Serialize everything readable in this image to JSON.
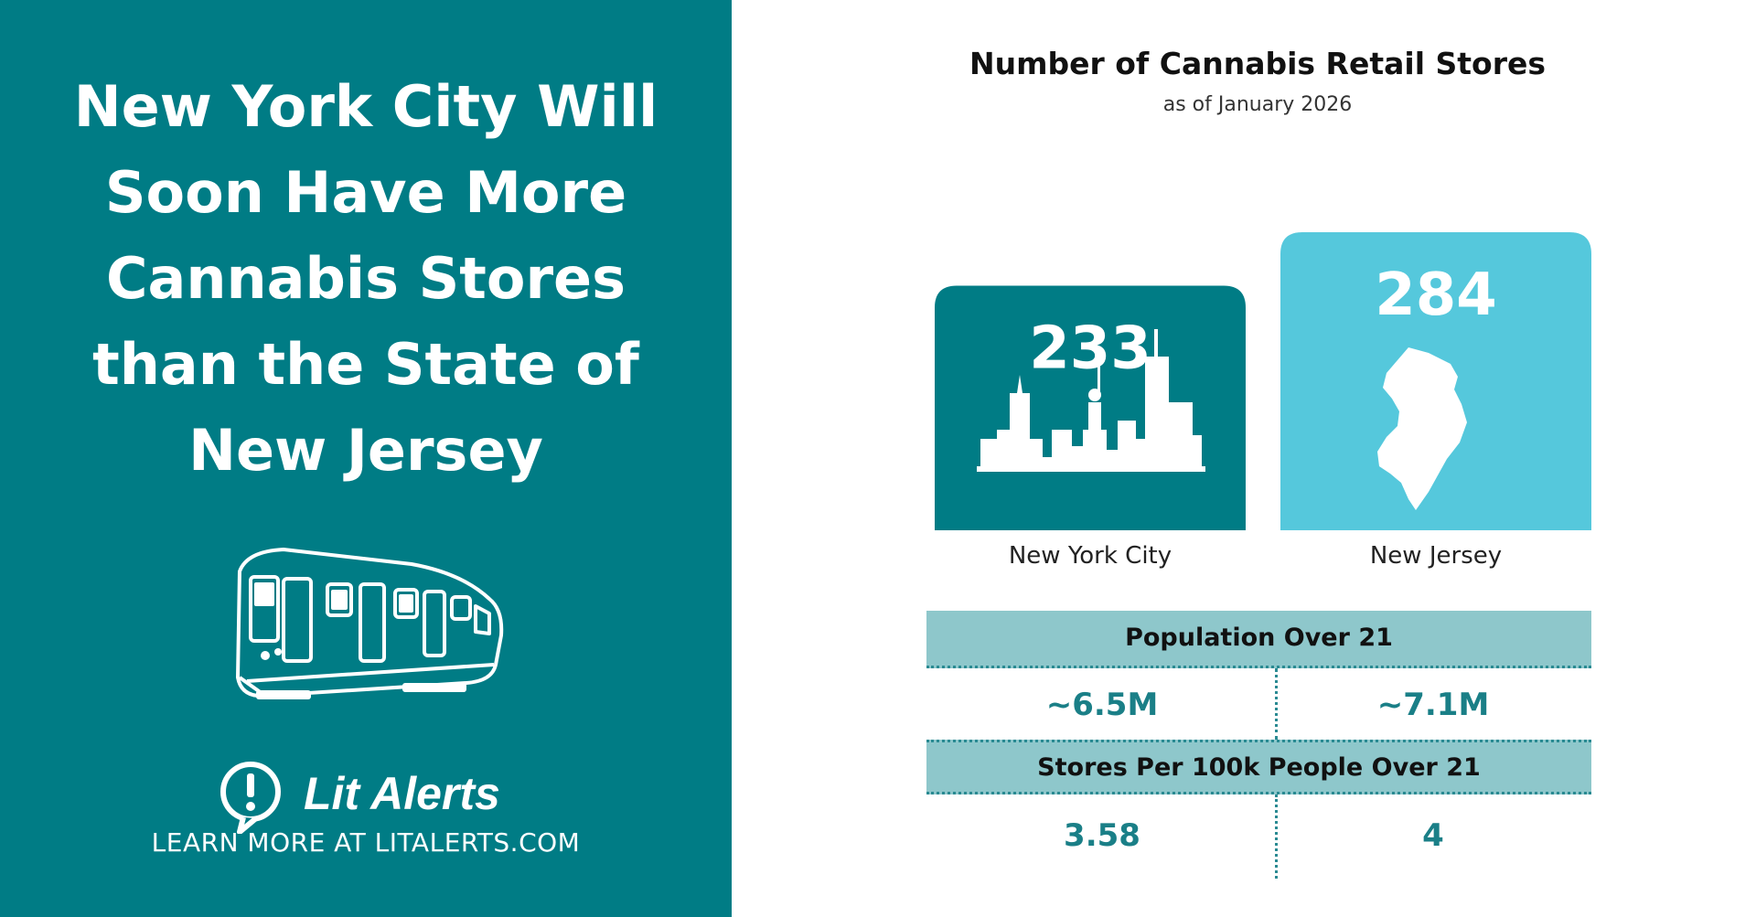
{
  "left_panel": {
    "headline_lines": [
      "New York City Will",
      "Soon Have More",
      "Cannabis Stores",
      "than the State of",
      "New Jersey"
    ],
    "brand_name": "Lit Alerts",
    "brand_url": "LEARN MORE AT LITALERTS.COM"
  },
  "chart_data": {
    "type": "bar",
    "title": "Number of Cannabis Retail Stores",
    "subtitle": "as of January 2026",
    "categories": [
      "New York City",
      "New Jersey"
    ],
    "values": [
      233,
      284
    ],
    "colors": [
      "#007c85",
      "#55c8dc"
    ],
    "icons": [
      "nyc-skyline-icon",
      "new-jersey-map-icon"
    ]
  },
  "table": {
    "population_header": "Population Over 21",
    "population": [
      "~6.5M",
      "~7.1M"
    ],
    "per_capita_header": "Stores Per 100k People Over 21",
    "per_capita": [
      "3.58",
      "4"
    ]
  },
  "colors": {
    "primary": "#007c85",
    "secondary": "#55c8dc",
    "table_header": "#8ec7cb"
  }
}
